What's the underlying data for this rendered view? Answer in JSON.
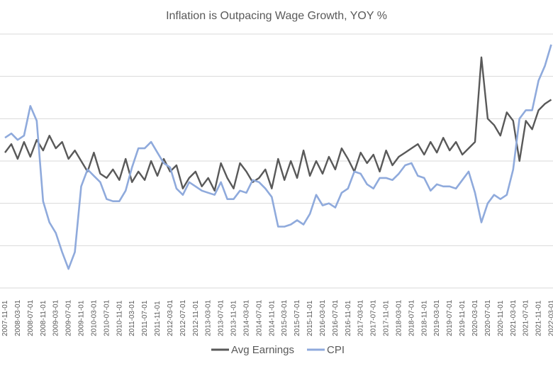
{
  "chart_data": {
    "type": "line",
    "title": "Inflation is Outpacing Wage Growth, YOY %",
    "xlabel": "",
    "ylabel": "",
    "ylim": [
      -3,
      9
    ],
    "grid": "horizontal",
    "legend_position": "bottom",
    "x_tick_labels": [
      "2007-11-01",
      "2008-03-01",
      "2008-07-01",
      "2008-11-01",
      "2009-03-01",
      "2009-07-01",
      "2009-11-01",
      "2010-03-01",
      "2010-07-01",
      "2010-11-01",
      "2011-03-01",
      "2011-07-01",
      "2011-11-01",
      "2012-03-01",
      "2012-07-01",
      "2012-11-01",
      "2013-03-01",
      "2013-07-01",
      "2013-11-01",
      "2014-03-01",
      "2014-07-01",
      "2014-11-01",
      "2015-03-01",
      "2015-07-01",
      "2015-11-01",
      "2016-03-01",
      "2016-07-01",
      "2016-11-01",
      "2017-03-01",
      "2017-07-01",
      "2017-11-01",
      "2018-03-01",
      "2018-07-01",
      "2018-11-01",
      "2019-03-01",
      "2019-07-01",
      "2019-11-01",
      "2020-03-01",
      "2020-07-01",
      "2020-11-01",
      "2021-03-01",
      "2021-07-01",
      "2021-11-01",
      "2022-03-01"
    ],
    "series": [
      {
        "name": "Avg Earnings",
        "color": "#595959",
        "points": [
          [
            "2007-11",
            3.4
          ],
          [
            "2008-01",
            3.8
          ],
          [
            "2008-03",
            3.1
          ],
          [
            "2008-05",
            3.9
          ],
          [
            "2008-07",
            3.2
          ],
          [
            "2008-09",
            4.0
          ],
          [
            "2008-11",
            3.5
          ],
          [
            "2009-01",
            4.2
          ],
          [
            "2009-03",
            3.6
          ],
          [
            "2009-05",
            3.9
          ],
          [
            "2009-07",
            3.1
          ],
          [
            "2009-09",
            3.5
          ],
          [
            "2009-11",
            3.0
          ],
          [
            "2010-01",
            2.5
          ],
          [
            "2010-03",
            3.4
          ],
          [
            "2010-05",
            2.4
          ],
          [
            "2010-07",
            2.2
          ],
          [
            "2010-09",
            2.6
          ],
          [
            "2010-11",
            2.1
          ],
          [
            "2011-01",
            3.1
          ],
          [
            "2011-03",
            2.0
          ],
          [
            "2011-05",
            2.5
          ],
          [
            "2011-07",
            2.1
          ],
          [
            "2011-09",
            3.0
          ],
          [
            "2011-11",
            2.3
          ],
          [
            "2012-01",
            3.1
          ],
          [
            "2012-03",
            2.5
          ],
          [
            "2012-05",
            2.8
          ],
          [
            "2012-07",
            1.7
          ],
          [
            "2012-09",
            2.2
          ],
          [
            "2012-11",
            2.5
          ],
          [
            "2013-01",
            1.8
          ],
          [
            "2013-03",
            2.2
          ],
          [
            "2013-05",
            1.6
          ],
          [
            "2013-07",
            2.9
          ],
          [
            "2013-09",
            2.2
          ],
          [
            "2013-11",
            1.7
          ],
          [
            "2014-01",
            2.9
          ],
          [
            "2014-03",
            2.5
          ],
          [
            "2014-05",
            2.0
          ],
          [
            "2014-07",
            2.2
          ],
          [
            "2014-09",
            2.6
          ],
          [
            "2014-11",
            1.7
          ],
          [
            "2015-01",
            3.1
          ],
          [
            "2015-03",
            2.1
          ],
          [
            "2015-05",
            3.0
          ],
          [
            "2015-07",
            2.2
          ],
          [
            "2015-09",
            3.5
          ],
          [
            "2015-11",
            2.3
          ],
          [
            "2016-01",
            3.0
          ],
          [
            "2016-03",
            2.4
          ],
          [
            "2016-05",
            3.2
          ],
          [
            "2016-07",
            2.6
          ],
          [
            "2016-09",
            3.6
          ],
          [
            "2016-11",
            3.1
          ],
          [
            "2017-01",
            2.5
          ],
          [
            "2017-03",
            3.4
          ],
          [
            "2017-05",
            2.9
          ],
          [
            "2017-07",
            3.3
          ],
          [
            "2017-09",
            2.5
          ],
          [
            "2017-11",
            3.5
          ],
          [
            "2018-01",
            2.8
          ],
          [
            "2018-03",
            3.2
          ],
          [
            "2018-05",
            3.4
          ],
          [
            "2018-07",
            3.6
          ],
          [
            "2018-09",
            3.8
          ],
          [
            "2018-11",
            3.3
          ],
          [
            "2019-01",
            3.9
          ],
          [
            "2019-03",
            3.4
          ],
          [
            "2019-05",
            4.1
          ],
          [
            "2019-07",
            3.5
          ],
          [
            "2019-09",
            3.9
          ],
          [
            "2019-11",
            3.3
          ],
          [
            "2020-01",
            3.6
          ],
          [
            "2020-03",
            3.9
          ],
          [
            "2020-05",
            7.9
          ],
          [
            "2020-07",
            5.0
          ],
          [
            "2020-09",
            4.7
          ],
          [
            "2020-11",
            4.2
          ],
          [
            "2021-01",
            5.3
          ],
          [
            "2021-03",
            4.9
          ],
          [
            "2021-05",
            3.0
          ],
          [
            "2021-07",
            4.9
          ],
          [
            "2021-09",
            4.5
          ],
          [
            "2021-11",
            5.4
          ],
          [
            "2022-01",
            5.7
          ],
          [
            "2022-03",
            5.9
          ]
        ]
      },
      {
        "name": "CPI",
        "color": "#8faadc",
        "points": [
          [
            "2007-11",
            4.1
          ],
          [
            "2008-01",
            4.3
          ],
          [
            "2008-03",
            4.0
          ],
          [
            "2008-05",
            4.2
          ],
          [
            "2008-07",
            5.6
          ],
          [
            "2008-09",
            4.9
          ],
          [
            "2008-11",
            1.1
          ],
          [
            "2009-01",
            0.1
          ],
          [
            "2009-03",
            -0.4
          ],
          [
            "2009-05",
            -1.3
          ],
          [
            "2009-07",
            -2.1
          ],
          [
            "2009-09",
            -1.3
          ],
          [
            "2009-11",
            1.8
          ],
          [
            "2010-01",
            2.6
          ],
          [
            "2010-03",
            2.3
          ],
          [
            "2010-05",
            2.0
          ],
          [
            "2010-07",
            1.2
          ],
          [
            "2010-09",
            1.1
          ],
          [
            "2010-11",
            1.1
          ],
          [
            "2011-01",
            1.6
          ],
          [
            "2011-03",
            2.7
          ],
          [
            "2011-05",
            3.6
          ],
          [
            "2011-07",
            3.6
          ],
          [
            "2011-09",
            3.9
          ],
          [
            "2011-11",
            3.4
          ],
          [
            "2012-01",
            2.9
          ],
          [
            "2012-03",
            2.7
          ],
          [
            "2012-05",
            1.7
          ],
          [
            "2012-07",
            1.4
          ],
          [
            "2012-09",
            2.0
          ],
          [
            "2012-11",
            1.8
          ],
          [
            "2013-01",
            1.6
          ],
          [
            "2013-03",
            1.5
          ],
          [
            "2013-05",
            1.4
          ],
          [
            "2013-07",
            2.0
          ],
          [
            "2013-09",
            1.2
          ],
          [
            "2013-11",
            1.2
          ],
          [
            "2014-01",
            1.6
          ],
          [
            "2014-03",
            1.5
          ],
          [
            "2014-05",
            2.1
          ],
          [
            "2014-07",
            2.0
          ],
          [
            "2014-09",
            1.7
          ],
          [
            "2014-11",
            1.3
          ],
          [
            "2015-01",
            -0.1
          ],
          [
            "2015-03",
            -0.1
          ],
          [
            "2015-05",
            0.0
          ],
          [
            "2015-07",
            0.2
          ],
          [
            "2015-09",
            0.0
          ],
          [
            "2015-11",
            0.5
          ],
          [
            "2016-01",
            1.4
          ],
          [
            "2016-03",
            0.9
          ],
          [
            "2016-05",
            1.0
          ],
          [
            "2016-07",
            0.8
          ],
          [
            "2016-09",
            1.5
          ],
          [
            "2016-11",
            1.7
          ],
          [
            "2017-01",
            2.5
          ],
          [
            "2017-03",
            2.4
          ],
          [
            "2017-05",
            1.9
          ],
          [
            "2017-07",
            1.7
          ],
          [
            "2017-09",
            2.2
          ],
          [
            "2017-11",
            2.2
          ],
          [
            "2018-01",
            2.1
          ],
          [
            "2018-03",
            2.4
          ],
          [
            "2018-05",
            2.8
          ],
          [
            "2018-07",
            2.9
          ],
          [
            "2018-09",
            2.3
          ],
          [
            "2018-11",
            2.2
          ],
          [
            "2019-01",
            1.6
          ],
          [
            "2019-03",
            1.9
          ],
          [
            "2019-05",
            1.8
          ],
          [
            "2019-07",
            1.8
          ],
          [
            "2019-09",
            1.7
          ],
          [
            "2019-11",
            2.1
          ],
          [
            "2020-01",
            2.5
          ],
          [
            "2020-03",
            1.5
          ],
          [
            "2020-05",
            0.1
          ],
          [
            "2020-07",
            1.0
          ],
          [
            "2020-09",
            1.4
          ],
          [
            "2020-11",
            1.2
          ],
          [
            "2021-01",
            1.4
          ],
          [
            "2021-03",
            2.6
          ],
          [
            "2021-05",
            5.0
          ],
          [
            "2021-07",
            5.4
          ],
          [
            "2021-09",
            5.4
          ],
          [
            "2021-11",
            6.8
          ],
          [
            "2022-01",
            7.5
          ],
          [
            "2022-03",
            8.5
          ]
        ]
      }
    ]
  }
}
